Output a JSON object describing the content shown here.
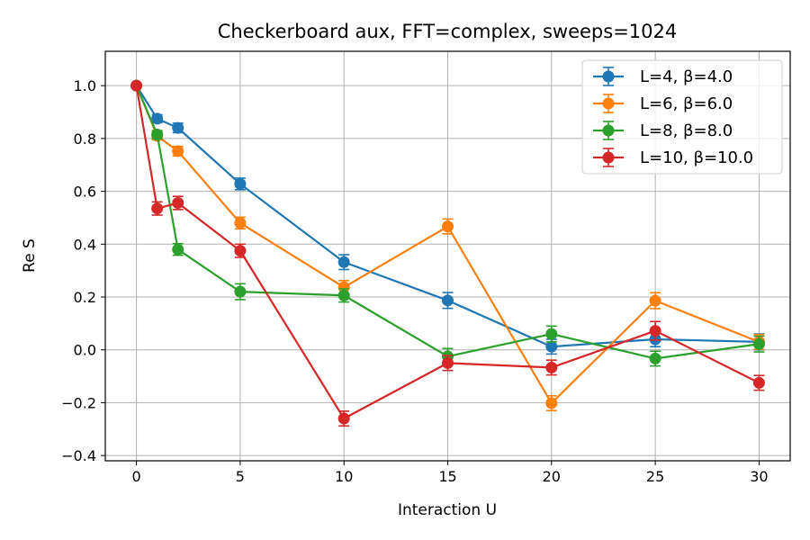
{
  "chart_data": {
    "type": "line",
    "title": "Checkerboard aux, FFT=complex, sweeps=1024",
    "xlabel": "Interaction U",
    "ylabel": "Re S",
    "xlim": [
      -1.5,
      31.5
    ],
    "ylim": [
      -0.42,
      1.13
    ],
    "xticks": [
      0,
      5,
      10,
      15,
      20,
      25,
      30
    ],
    "yticks": [
      -0.4,
      -0.2,
      0.0,
      0.2,
      0.4,
      0.6,
      0.8,
      1.0
    ],
    "xtick_labels": [
      "0",
      "5",
      "10",
      "15",
      "20",
      "25",
      "30"
    ],
    "ytick_labels": [
      "−0.4",
      "−0.2",
      "0.0",
      "0.2",
      "0.4",
      "0.6",
      "0.8",
      "1.0"
    ],
    "grid": true,
    "legend_position": "top-right",
    "x": [
      0,
      1,
      2,
      5,
      10,
      15,
      20,
      25,
      30
    ],
    "series": [
      {
        "name": "L=4, β=4.0",
        "color": "#1f77b4",
        "values": [
          1.0,
          0.875,
          0.84,
          0.628,
          0.332,
          0.187,
          0.012,
          0.04,
          0.03
        ],
        "errors": [
          0.0,
          0.015,
          0.018,
          0.022,
          0.028,
          0.03,
          0.028,
          0.028,
          0.03
        ]
      },
      {
        "name": "L=6, β=6.0",
        "color": "#ff7f0e",
        "values": [
          1.0,
          0.81,
          0.752,
          0.48,
          0.237,
          0.467,
          -0.202,
          0.186,
          0.03
        ],
        "errors": [
          0.0,
          0.015,
          0.018,
          0.022,
          0.025,
          0.028,
          0.028,
          0.03,
          0.028
        ]
      },
      {
        "name": "L=8, β=8.0",
        "color": "#2ca02c",
        "values": [
          1.0,
          0.815,
          0.38,
          0.22,
          0.206,
          -0.025,
          0.06,
          -0.033,
          0.022
        ],
        "errors": [
          0.0,
          0.015,
          0.022,
          0.03,
          0.025,
          0.03,
          0.03,
          0.028,
          0.03
        ]
      },
      {
        "name": "L=10, β=10.0",
        "color": "#d62728",
        "values": [
          1.0,
          0.535,
          0.556,
          0.375,
          -0.26,
          -0.05,
          -0.067,
          0.072,
          -0.125
        ],
        "errors": [
          0.0,
          0.025,
          0.025,
          0.025,
          0.028,
          0.028,
          0.028,
          0.035,
          0.028
        ]
      }
    ]
  }
}
